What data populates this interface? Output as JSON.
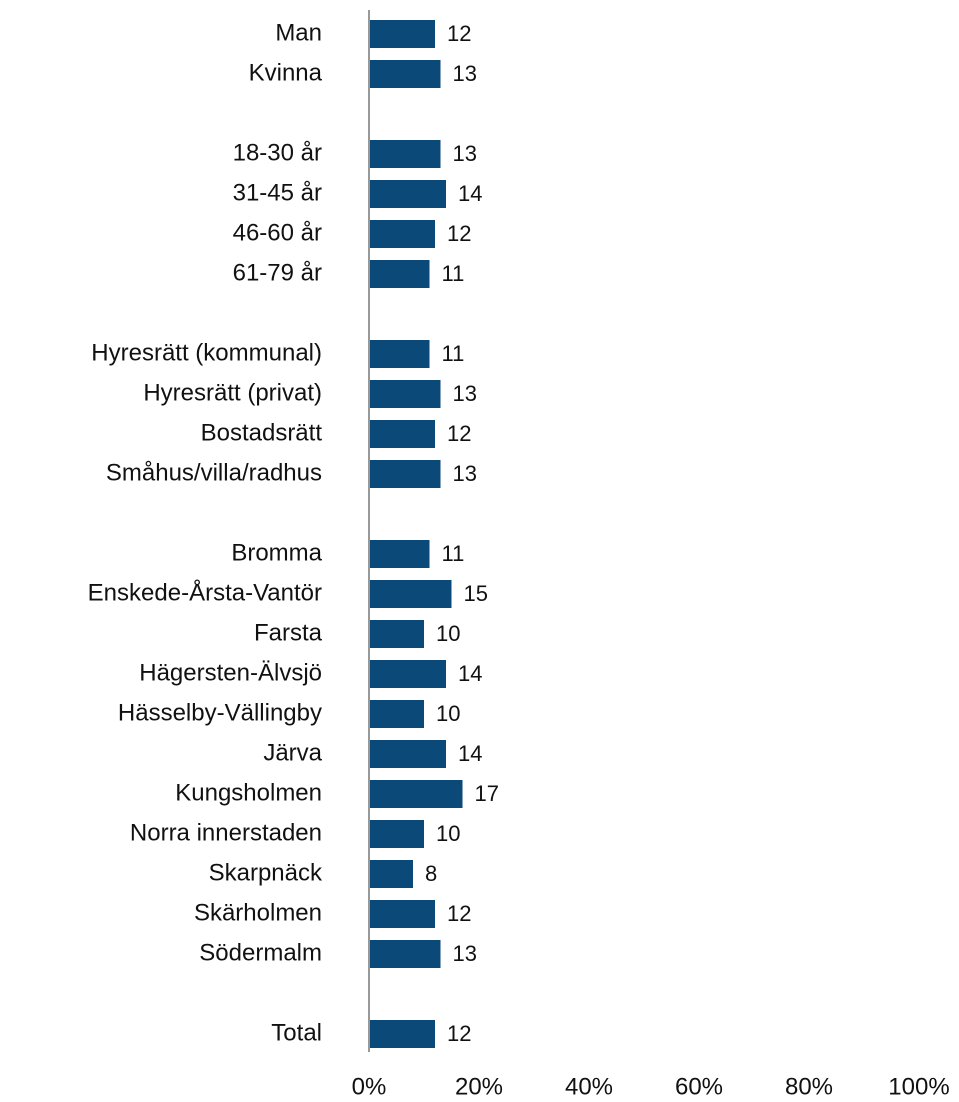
{
  "chart_data": {
    "type": "hbar",
    "categories": [
      "Man",
      "Kvinna",
      null,
      "18-30 år",
      "31-45 år",
      "46-60 år",
      "61-79 år",
      null,
      "Hyresrätt (kommunal)",
      "Hyresrätt (privat)",
      "Bostadsrätt",
      "Småhus/villa/radhus",
      null,
      "Bromma",
      "Enskede-Årsta-Vantör",
      "Farsta",
      "Hägersten-Älvsjö",
      "Hässelby-Vällingby",
      "Järva",
      "Kungsholmen",
      "Norra innerstaden",
      "Skarpnäck",
      "Skärholmen",
      "Södermalm",
      null,
      "Total"
    ],
    "values": [
      12,
      13,
      null,
      13,
      14,
      12,
      11,
      null,
      11,
      13,
      12,
      13,
      null,
      11,
      15,
      10,
      14,
      10,
      14,
      17,
      10,
      8,
      12,
      13,
      null,
      12
    ],
    "color": "#0b4a78",
    "xlim": [
      0,
      100
    ],
    "xticks": [
      {
        "value": 0,
        "label": "0%"
      },
      {
        "value": 20,
        "label": "20%"
      },
      {
        "value": 40,
        "label": "40%"
      },
      {
        "value": 60,
        "label": "60%"
      },
      {
        "value": 80,
        "label": "80%"
      },
      {
        "value": 100,
        "label": "100%"
      }
    ]
  }
}
